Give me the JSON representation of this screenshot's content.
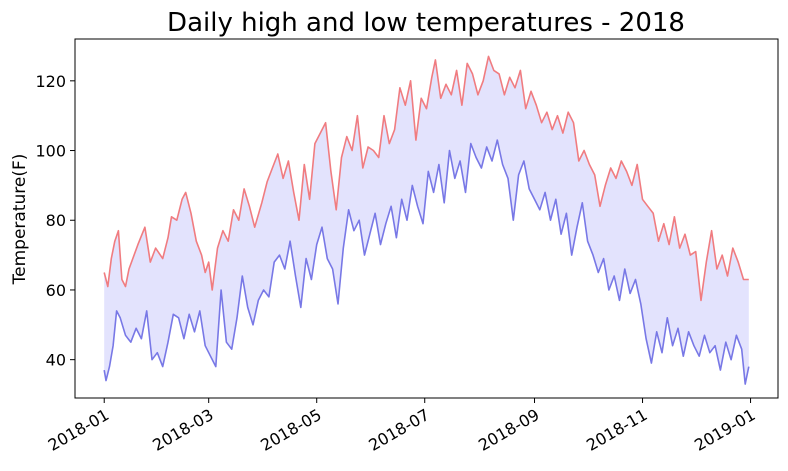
{
  "chart_data": {
    "type": "line",
    "title": "Daily high and low temperatures - 2018",
    "xlabel": "",
    "ylabel": "Temperature(F)",
    "x_range": [
      "2018-01-01",
      "2018-12-31"
    ],
    "ylim": [
      29,
      132
    ],
    "x_ticks": [
      "2018-01",
      "2018-03",
      "2018-05",
      "2018-07",
      "2018-09",
      "2018-11",
      "2019-01"
    ],
    "y_ticks": [
      40,
      60,
      80,
      100,
      120
    ],
    "grid": false,
    "legend": "none",
    "fill_between": {
      "upper": "highs",
      "lower": "lows",
      "color": "#e3e3fd"
    },
    "series": [
      {
        "color": "#f07c80",
        "points": [
          [
            "2018-01-01",
            65
          ],
          [
            "2018-01-03",
            61
          ],
          [
            "2018-01-05",
            69
          ],
          [
            "2018-01-07",
            74
          ],
          [
            "2018-01-09",
            77
          ],
          [
            "2018-01-11",
            63
          ],
          [
            "2018-01-13",
            61
          ],
          [
            "2018-01-15",
            66
          ],
          [
            "2018-01-20",
            73
          ],
          [
            "2018-01-24",
            78
          ],
          [
            "2018-01-27",
            68
          ],
          [
            "2018-01-30",
            72
          ],
          [
            "2018-02-03",
            69
          ],
          [
            "2018-02-06",
            75
          ],
          [
            "2018-02-08",
            81
          ],
          [
            "2018-02-11",
            80
          ],
          [
            "2018-02-14",
            86
          ],
          [
            "2018-02-16",
            88
          ],
          [
            "2018-02-19",
            82
          ],
          [
            "2018-02-22",
            74
          ],
          [
            "2018-02-25",
            70
          ],
          [
            "2018-02-27",
            65
          ],
          [
            "2018-03-01",
            68
          ],
          [
            "2018-03-03",
            60
          ],
          [
            "2018-03-06",
            72
          ],
          [
            "2018-03-09",
            77
          ],
          [
            "2018-03-12",
            74
          ],
          [
            "2018-03-15",
            83
          ],
          [
            "2018-03-18",
            80
          ],
          [
            "2018-03-21",
            89
          ],
          [
            "2018-03-24",
            84
          ],
          [
            "2018-03-27",
            78
          ],
          [
            "2018-03-31",
            85
          ],
          [
            "2018-04-03",
            91
          ],
          [
            "2018-04-06",
            95
          ],
          [
            "2018-04-09",
            99
          ],
          [
            "2018-04-12",
            92
          ],
          [
            "2018-04-15",
            97
          ],
          [
            "2018-04-18",
            88
          ],
          [
            "2018-04-21",
            80
          ],
          [
            "2018-04-24",
            96
          ],
          [
            "2018-04-27",
            86
          ],
          [
            "2018-04-30",
            102
          ],
          [
            "2018-05-03",
            105
          ],
          [
            "2018-05-06",
            108
          ],
          [
            "2018-05-09",
            94
          ],
          [
            "2018-05-12",
            83
          ],
          [
            "2018-05-15",
            98
          ],
          [
            "2018-05-18",
            104
          ],
          [
            "2018-05-21",
            100
          ],
          [
            "2018-05-24",
            110
          ],
          [
            "2018-05-27",
            95
          ],
          [
            "2018-05-30",
            101
          ],
          [
            "2018-06-02",
            100
          ],
          [
            "2018-06-05",
            98
          ],
          [
            "2018-06-08",
            110
          ],
          [
            "2018-06-11",
            102
          ],
          [
            "2018-06-14",
            106
          ],
          [
            "2018-06-17",
            118
          ],
          [
            "2018-06-20",
            113
          ],
          [
            "2018-06-23",
            120
          ],
          [
            "2018-06-26",
            103
          ],
          [
            "2018-06-29",
            115
          ],
          [
            "2018-07-02",
            112
          ],
          [
            "2018-07-05",
            121
          ],
          [
            "2018-07-07",
            126
          ],
          [
            "2018-07-10",
            115
          ],
          [
            "2018-07-13",
            119
          ],
          [
            "2018-07-16",
            116
          ],
          [
            "2018-07-19",
            123
          ],
          [
            "2018-07-22",
            113
          ],
          [
            "2018-07-25",
            125
          ],
          [
            "2018-07-28",
            122
          ],
          [
            "2018-07-31",
            116
          ],
          [
            "2018-08-03",
            120
          ],
          [
            "2018-08-06",
            127
          ],
          [
            "2018-08-09",
            123
          ],
          [
            "2018-08-12",
            122
          ],
          [
            "2018-08-15",
            116
          ],
          [
            "2018-08-18",
            121
          ],
          [
            "2018-08-21",
            118
          ],
          [
            "2018-08-24",
            123
          ],
          [
            "2018-08-27",
            112
          ],
          [
            "2018-08-30",
            117
          ],
          [
            "2018-09-02",
            113
          ],
          [
            "2018-09-05",
            108
          ],
          [
            "2018-09-08",
            111
          ],
          [
            "2018-09-11",
            106
          ],
          [
            "2018-09-14",
            110
          ],
          [
            "2018-09-17",
            105
          ],
          [
            "2018-09-20",
            111
          ],
          [
            "2018-09-23",
            108
          ],
          [
            "2018-09-26",
            97
          ],
          [
            "2018-09-29",
            100
          ],
          [
            "2018-10-02",
            96
          ],
          [
            "2018-10-05",
            93
          ],
          [
            "2018-10-08",
            84
          ],
          [
            "2018-10-11",
            90
          ],
          [
            "2018-10-14",
            95
          ],
          [
            "2018-10-17",
            92
          ],
          [
            "2018-10-20",
            97
          ],
          [
            "2018-10-23",
            94
          ],
          [
            "2018-10-26",
            90
          ],
          [
            "2018-10-29",
            96
          ],
          [
            "2018-11-01",
            86
          ],
          [
            "2018-11-04",
            84
          ],
          [
            "2018-11-07",
            82
          ],
          [
            "2018-11-10",
            74
          ],
          [
            "2018-11-13",
            79
          ],
          [
            "2018-11-16",
            73
          ],
          [
            "2018-11-19",
            81
          ],
          [
            "2018-11-22",
            72
          ],
          [
            "2018-11-25",
            76
          ],
          [
            "2018-11-28",
            70
          ],
          [
            "2018-12-01",
            71
          ],
          [
            "2018-12-04",
            57
          ],
          [
            "2018-12-07",
            68
          ],
          [
            "2018-12-10",
            77
          ],
          [
            "2018-12-13",
            66
          ],
          [
            "2018-12-16",
            70
          ],
          [
            "2018-12-19",
            64
          ],
          [
            "2018-12-22",
            72
          ],
          [
            "2018-12-25",
            68
          ],
          [
            "2018-12-28",
            63
          ],
          [
            "2018-12-31",
            63
          ]
        ]
      },
      {
        "color": "#7878e6",
        "points": [
          [
            "2018-01-01",
            37
          ],
          [
            "2018-01-02",
            34
          ],
          [
            "2018-01-04",
            38
          ],
          [
            "2018-01-06",
            44
          ],
          [
            "2018-01-08",
            54
          ],
          [
            "2018-01-10",
            52
          ],
          [
            "2018-01-13",
            47
          ],
          [
            "2018-01-16",
            45
          ],
          [
            "2018-01-19",
            49
          ],
          [
            "2018-01-22",
            46
          ],
          [
            "2018-01-25",
            54
          ],
          [
            "2018-01-28",
            40
          ],
          [
            "2018-01-31",
            42
          ],
          [
            "2018-02-03",
            38
          ],
          [
            "2018-02-06",
            45
          ],
          [
            "2018-02-09",
            53
          ],
          [
            "2018-02-12",
            52
          ],
          [
            "2018-02-15",
            46
          ],
          [
            "2018-02-18",
            53
          ],
          [
            "2018-02-21",
            48
          ],
          [
            "2018-02-24",
            54
          ],
          [
            "2018-02-27",
            44
          ],
          [
            "2018-03-02",
            41
          ],
          [
            "2018-03-05",
            38
          ],
          [
            "2018-03-08",
            60
          ],
          [
            "2018-03-11",
            45
          ],
          [
            "2018-03-14",
            43
          ],
          [
            "2018-03-17",
            52
          ],
          [
            "2018-03-20",
            64
          ],
          [
            "2018-03-23",
            55
          ],
          [
            "2018-03-26",
            50
          ],
          [
            "2018-03-29",
            57
          ],
          [
            "2018-04-01",
            60
          ],
          [
            "2018-04-04",
            58
          ],
          [
            "2018-04-07",
            68
          ],
          [
            "2018-04-10",
            70
          ],
          [
            "2018-04-13",
            66
          ],
          [
            "2018-04-16",
            74
          ],
          [
            "2018-04-19",
            64
          ],
          [
            "2018-04-22",
            55
          ],
          [
            "2018-04-25",
            69
          ],
          [
            "2018-04-28",
            63
          ],
          [
            "2018-05-01",
            73
          ],
          [
            "2018-05-04",
            78
          ],
          [
            "2018-05-07",
            69
          ],
          [
            "2018-05-10",
            66
          ],
          [
            "2018-05-13",
            56
          ],
          [
            "2018-05-16",
            72
          ],
          [
            "2018-05-19",
            83
          ],
          [
            "2018-05-22",
            77
          ],
          [
            "2018-05-25",
            80
          ],
          [
            "2018-05-28",
            70
          ],
          [
            "2018-05-31",
            76
          ],
          [
            "2018-06-03",
            82
          ],
          [
            "2018-06-06",
            73
          ],
          [
            "2018-06-09",
            79
          ],
          [
            "2018-06-12",
            84
          ],
          [
            "2018-06-15",
            75
          ],
          [
            "2018-06-18",
            86
          ],
          [
            "2018-06-21",
            80
          ],
          [
            "2018-06-24",
            90
          ],
          [
            "2018-06-27",
            84
          ],
          [
            "2018-06-30",
            79
          ],
          [
            "2018-07-03",
            94
          ],
          [
            "2018-07-06",
            88
          ],
          [
            "2018-07-09",
            96
          ],
          [
            "2018-07-12",
            85
          ],
          [
            "2018-07-15",
            100
          ],
          [
            "2018-07-18",
            92
          ],
          [
            "2018-07-21",
            97
          ],
          [
            "2018-07-24",
            88
          ],
          [
            "2018-07-27",
            102
          ],
          [
            "2018-07-30",
            98
          ],
          [
            "2018-08-02",
            95
          ],
          [
            "2018-08-05",
            101
          ],
          [
            "2018-08-08",
            97
          ],
          [
            "2018-08-11",
            103
          ],
          [
            "2018-08-14",
            96
          ],
          [
            "2018-08-17",
            92
          ],
          [
            "2018-08-20",
            80
          ],
          [
            "2018-08-23",
            93
          ],
          [
            "2018-08-26",
            97
          ],
          [
            "2018-08-29",
            89
          ],
          [
            "2018-09-01",
            86
          ],
          [
            "2018-09-04",
            83
          ],
          [
            "2018-09-07",
            88
          ],
          [
            "2018-09-10",
            80
          ],
          [
            "2018-09-13",
            86
          ],
          [
            "2018-09-16",
            76
          ],
          [
            "2018-09-19",
            82
          ],
          [
            "2018-09-22",
            70
          ],
          [
            "2018-09-25",
            78
          ],
          [
            "2018-09-28",
            85
          ],
          [
            "2018-10-01",
            74
          ],
          [
            "2018-10-04",
            70
          ],
          [
            "2018-10-07",
            65
          ],
          [
            "2018-10-10",
            69
          ],
          [
            "2018-10-13",
            60
          ],
          [
            "2018-10-16",
            64
          ],
          [
            "2018-10-19",
            57
          ],
          [
            "2018-10-22",
            66
          ],
          [
            "2018-10-25",
            59
          ],
          [
            "2018-10-28",
            63
          ],
          [
            "2018-10-31",
            56
          ],
          [
            "2018-11-03",
            46
          ],
          [
            "2018-11-06",
            39
          ],
          [
            "2018-11-09",
            48
          ],
          [
            "2018-11-12",
            42
          ],
          [
            "2018-11-15",
            52
          ],
          [
            "2018-11-18",
            44
          ],
          [
            "2018-11-21",
            49
          ],
          [
            "2018-11-24",
            41
          ],
          [
            "2018-11-27",
            48
          ],
          [
            "2018-11-30",
            44
          ],
          [
            "2018-12-03",
            41
          ],
          [
            "2018-12-06",
            47
          ],
          [
            "2018-12-09",
            42
          ],
          [
            "2018-12-12",
            44
          ],
          [
            "2018-12-15",
            37
          ],
          [
            "2018-12-18",
            45
          ],
          [
            "2018-12-21",
            40
          ],
          [
            "2018-12-24",
            47
          ],
          [
            "2018-12-27",
            43
          ],
          [
            "2018-12-29",
            33
          ],
          [
            "2018-12-31",
            38
          ]
        ]
      }
    ]
  }
}
